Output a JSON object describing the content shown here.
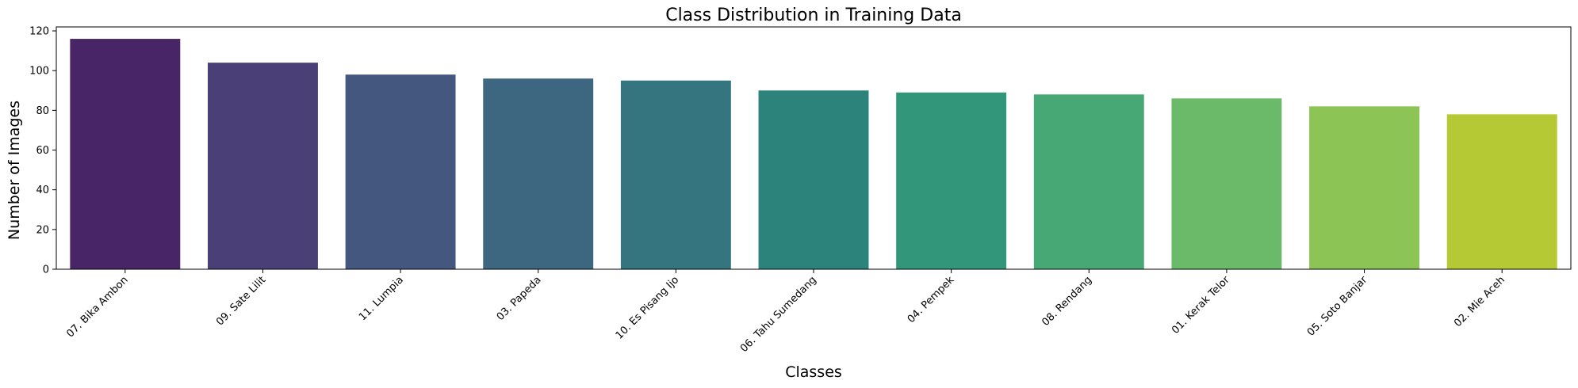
{
  "chart_data": {
    "type": "bar",
    "title": "Class Distribution in Training Data",
    "xlabel": "Classes",
    "ylabel": "Number of Images",
    "categories": [
      "07. Bika Ambon",
      "09. Sate Lilit",
      "11. Lumpia",
      "03. Papeda",
      "10. Es Pisang Ijo",
      "06. Tahu Sumedang",
      "04. Pempek",
      "08. Rendang",
      "01. Kerak Telor",
      "05. Soto Banjar",
      "02. Mie Aceh"
    ],
    "values": [
      116,
      104,
      98,
      96,
      95,
      90,
      89,
      88,
      86,
      82,
      78
    ],
    "colors": [
      "#482566",
      "#4a3f77",
      "#44577f",
      "#3d6680",
      "#347580",
      "#2c837b",
      "#32967b",
      "#47a876",
      "#6aba69",
      "#8cc456",
      "#b4c934"
    ],
    "ylim": [
      0,
      122
    ],
    "yticks": [
      0,
      20,
      40,
      60,
      80,
      100,
      120
    ],
    "grid": false,
    "legend": "none"
  }
}
